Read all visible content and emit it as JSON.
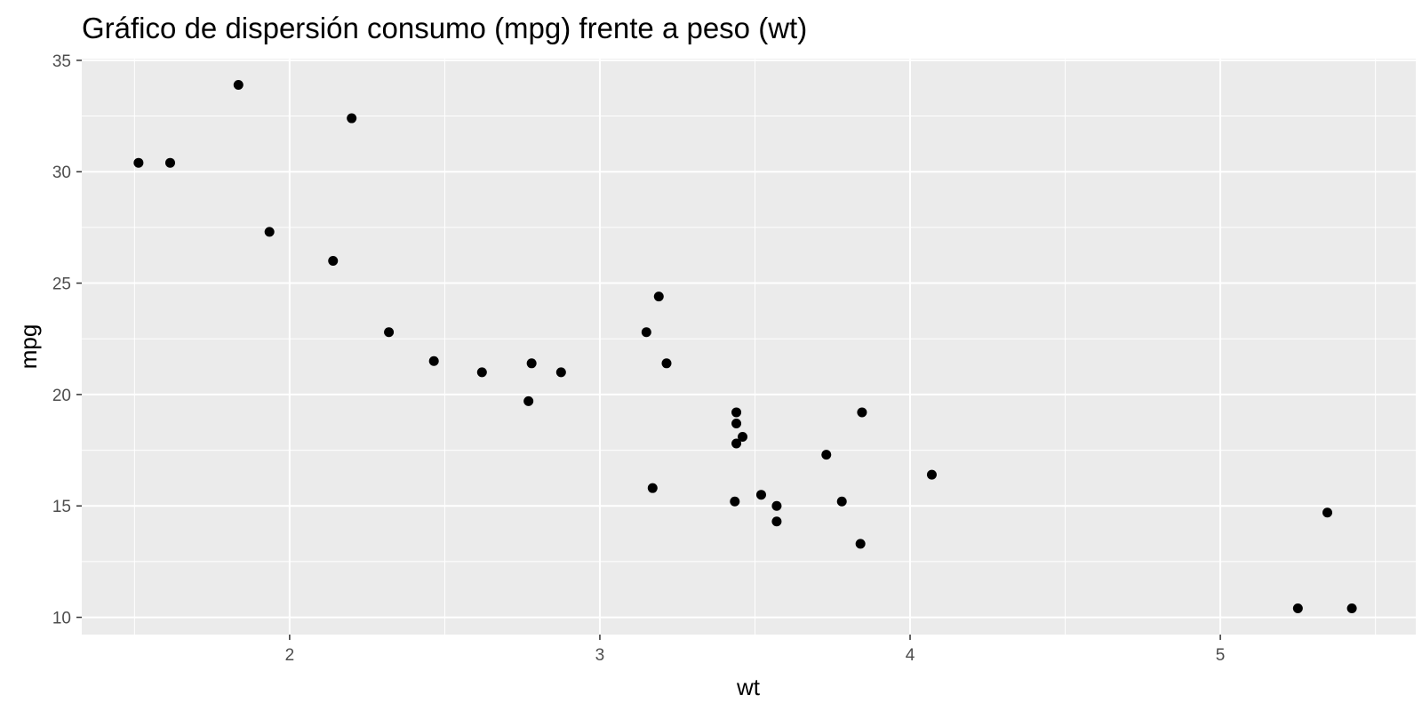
{
  "chart_data": {
    "type": "scatter",
    "title": "Gráfico de dispersión consumo (mpg) frente a peso (wt)",
    "xlabel": "wt",
    "ylabel": "mpg",
    "xlim": [
      1.33,
      5.63
    ],
    "ylim": [
      9.225,
      35.075
    ],
    "x_ticks": [
      2,
      3,
      4,
      5
    ],
    "y_ticks": [
      10,
      15,
      20,
      25,
      30,
      35
    ],
    "x_tick_labels": [
      "2",
      "3",
      "4",
      "5"
    ],
    "y_tick_labels": [
      "10",
      "15",
      "20",
      "25",
      "30",
      "35"
    ],
    "grid": true,
    "colors": {
      "panel_background": "#ebebeb",
      "grid_line": "#ffffff",
      "point": "#000000",
      "tick_label": "#4d4d4d",
      "tick_mark": "#333333"
    },
    "points": [
      {
        "x": 2.62,
        "y": 21.0
      },
      {
        "x": 2.875,
        "y": 21.0
      },
      {
        "x": 2.32,
        "y": 22.8
      },
      {
        "x": 3.215,
        "y": 21.4
      },
      {
        "x": 3.44,
        "y": 18.7
      },
      {
        "x": 3.46,
        "y": 18.1
      },
      {
        "x": 3.57,
        "y": 14.3
      },
      {
        "x": 3.19,
        "y": 24.4
      },
      {
        "x": 3.15,
        "y": 22.8
      },
      {
        "x": 3.44,
        "y": 19.2
      },
      {
        "x": 3.44,
        "y": 17.8
      },
      {
        "x": 4.07,
        "y": 16.4
      },
      {
        "x": 3.73,
        "y": 17.3
      },
      {
        "x": 3.78,
        "y": 15.2
      },
      {
        "x": 5.25,
        "y": 10.4
      },
      {
        "x": 5.424,
        "y": 10.4
      },
      {
        "x": 5.345,
        "y": 14.7
      },
      {
        "x": 2.2,
        "y": 32.4
      },
      {
        "x": 1.615,
        "y": 30.4
      },
      {
        "x": 1.835,
        "y": 33.9
      },
      {
        "x": 2.465,
        "y": 21.5
      },
      {
        "x": 3.52,
        "y": 15.5
      },
      {
        "x": 3.435,
        "y": 15.2
      },
      {
        "x": 3.84,
        "y": 13.3
      },
      {
        "x": 3.845,
        "y": 19.2
      },
      {
        "x": 1.935,
        "y": 27.3
      },
      {
        "x": 2.14,
        "y": 26.0
      },
      {
        "x": 1.513,
        "y": 30.4
      },
      {
        "x": 3.17,
        "y": 15.8
      },
      {
        "x": 2.77,
        "y": 19.7
      },
      {
        "x": 3.57,
        "y": 15.0
      },
      {
        "x": 2.78,
        "y": 21.4
      }
    ]
  }
}
